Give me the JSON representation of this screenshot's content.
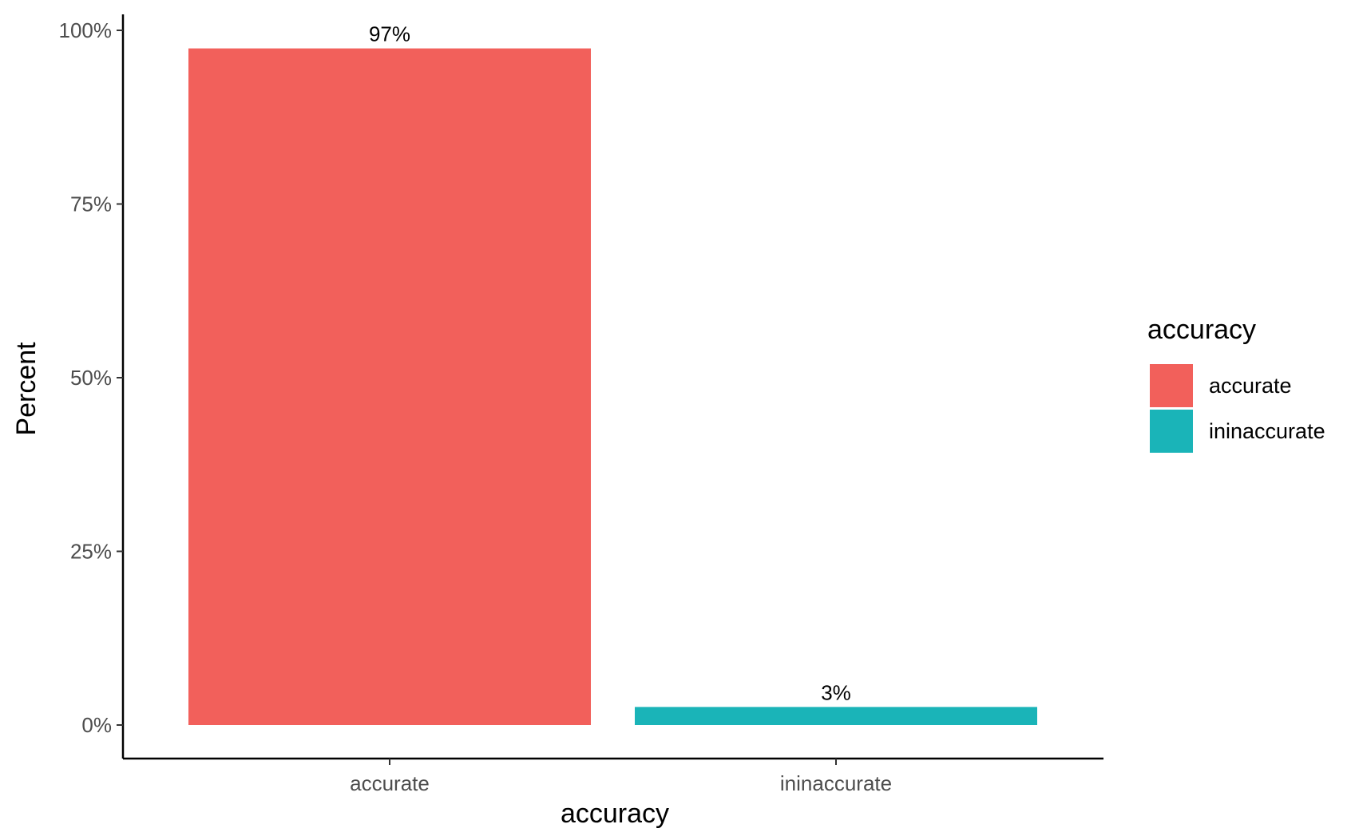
{
  "chart_data": {
    "type": "bar",
    "categories": [
      "accurate",
      "ininaccurate"
    ],
    "values": [
      97.4,
      2.6
    ],
    "data_labels": [
      "97%",
      "3%"
    ],
    "colors": [
      "#F2605B",
      "#1AB4B8"
    ],
    "xlabel": "accuracy",
    "ylabel": "Percent",
    "ylim": [
      0,
      100
    ],
    "yticks": [
      0,
      25,
      50,
      75,
      100
    ],
    "ytick_labels": [
      "0%",
      "25%",
      "50%",
      "75%",
      "100%"
    ],
    "grid": false,
    "legend": {
      "title": "accuracy",
      "position": "right",
      "entries": [
        "accurate",
        "ininaccurate"
      ]
    }
  }
}
